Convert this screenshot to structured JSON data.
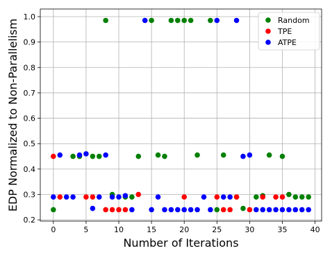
{
  "chart_data": {
    "type": "scatter",
    "title": "",
    "xlabel": "Number of Iterations",
    "ylabel": "EDP Normalized to Non-Parallelism",
    "xlim": [
      -2,
      41
    ],
    "ylim": [
      0.195,
      1.03
    ],
    "xticks": [
      0,
      5,
      10,
      15,
      20,
      25,
      30,
      35,
      40
    ],
    "yticks": [
      0.2,
      0.3,
      0.4,
      0.5,
      0.6,
      0.7,
      0.8,
      0.9,
      1.0
    ],
    "xtick_labels": [
      "0",
      "5",
      "10",
      "15",
      "20",
      "25",
      "30",
      "35",
      "40"
    ],
    "ytick_labels": [
      "0.2",
      "0.3",
      "0.4",
      "0.5",
      "0.6",
      "0.7",
      "0.8",
      "0.9",
      "1.0"
    ],
    "grid": true,
    "legend_position": "top-right",
    "series": [
      {
        "name": "Random",
        "color": "#008000",
        "points": [
          [
            0,
            0.24
          ],
          [
            3,
            0.45
          ],
          [
            4,
            0.45
          ],
          [
            6,
            0.45
          ],
          [
            7,
            0.45
          ],
          [
            8,
            0.985
          ],
          [
            9,
            0.3
          ],
          [
            11,
            0.29
          ],
          [
            12,
            0.29
          ],
          [
            13,
            0.45
          ],
          [
            15,
            0.985
          ],
          [
            16,
            0.455
          ],
          [
            17,
            0.45
          ],
          [
            18,
            0.985
          ],
          [
            19,
            0.985
          ],
          [
            20,
            0.985
          ],
          [
            21,
            0.985
          ],
          [
            22,
            0.455
          ],
          [
            24,
            0.985
          ],
          [
            25,
            0.24
          ],
          [
            26,
            0.455
          ],
          [
            28,
            0.29
          ],
          [
            29,
            0.245
          ],
          [
            31,
            0.29
          ],
          [
            32,
            0.295
          ],
          [
            33,
            0.455
          ],
          [
            35,
            0.45
          ],
          [
            36,
            0.3
          ],
          [
            37,
            0.29
          ],
          [
            38,
            0.29
          ],
          [
            39,
            0.29
          ]
        ]
      },
      {
        "name": "TPE",
        "color": "#ff0000",
        "points": [
          [
            0,
            0.45
          ],
          [
            1,
            0.29
          ],
          [
            5,
            0.29
          ],
          [
            6,
            0.29
          ],
          [
            8,
            0.24
          ],
          [
            9,
            0.24
          ],
          [
            10,
            0.24
          ],
          [
            11,
            0.24
          ],
          [
            13,
            0.3
          ],
          [
            20,
            0.29
          ],
          [
            25,
            0.29
          ],
          [
            26,
            0.24
          ],
          [
            27,
            0.24
          ],
          [
            28,
            0.29
          ],
          [
            30,
            0.24
          ],
          [
            32,
            0.29
          ],
          [
            34,
            0.29
          ],
          [
            35,
            0.29
          ]
        ]
      },
      {
        "name": "ATPE",
        "color": "#0000ff",
        "points": [
          [
            0,
            0.29
          ],
          [
            1,
            0.455
          ],
          [
            2,
            0.29
          ],
          [
            3,
            0.29
          ],
          [
            4,
            0.455
          ],
          [
            5,
            0.46
          ],
          [
            6,
            0.245
          ],
          [
            7,
            0.29
          ],
          [
            8,
            0.455
          ],
          [
            9,
            0.29
          ],
          [
            10,
            0.29
          ],
          [
            11,
            0.295
          ],
          [
            12,
            0.24
          ],
          [
            14,
            0.985
          ],
          [
            15,
            0.24
          ],
          [
            16,
            0.29
          ],
          [
            17,
            0.24
          ],
          [
            18,
            0.24
          ],
          [
            19,
            0.24
          ],
          [
            20,
            0.24
          ],
          [
            21,
            0.24
          ],
          [
            22,
            0.24
          ],
          [
            23,
            0.29
          ],
          [
            24,
            0.24
          ],
          [
            25,
            0.985
          ],
          [
            26,
            0.29
          ],
          [
            27,
            0.29
          ],
          [
            28,
            0.985
          ],
          [
            29,
            0.45
          ],
          [
            30,
            0.455
          ],
          [
            31,
            0.24
          ],
          [
            32,
            0.24
          ],
          [
            33,
            0.24
          ],
          [
            34,
            0.24
          ],
          [
            35,
            0.24
          ],
          [
            36,
            0.24
          ],
          [
            37,
            0.24
          ],
          [
            38,
            0.24
          ],
          [
            39,
            0.24
          ]
        ]
      }
    ]
  }
}
